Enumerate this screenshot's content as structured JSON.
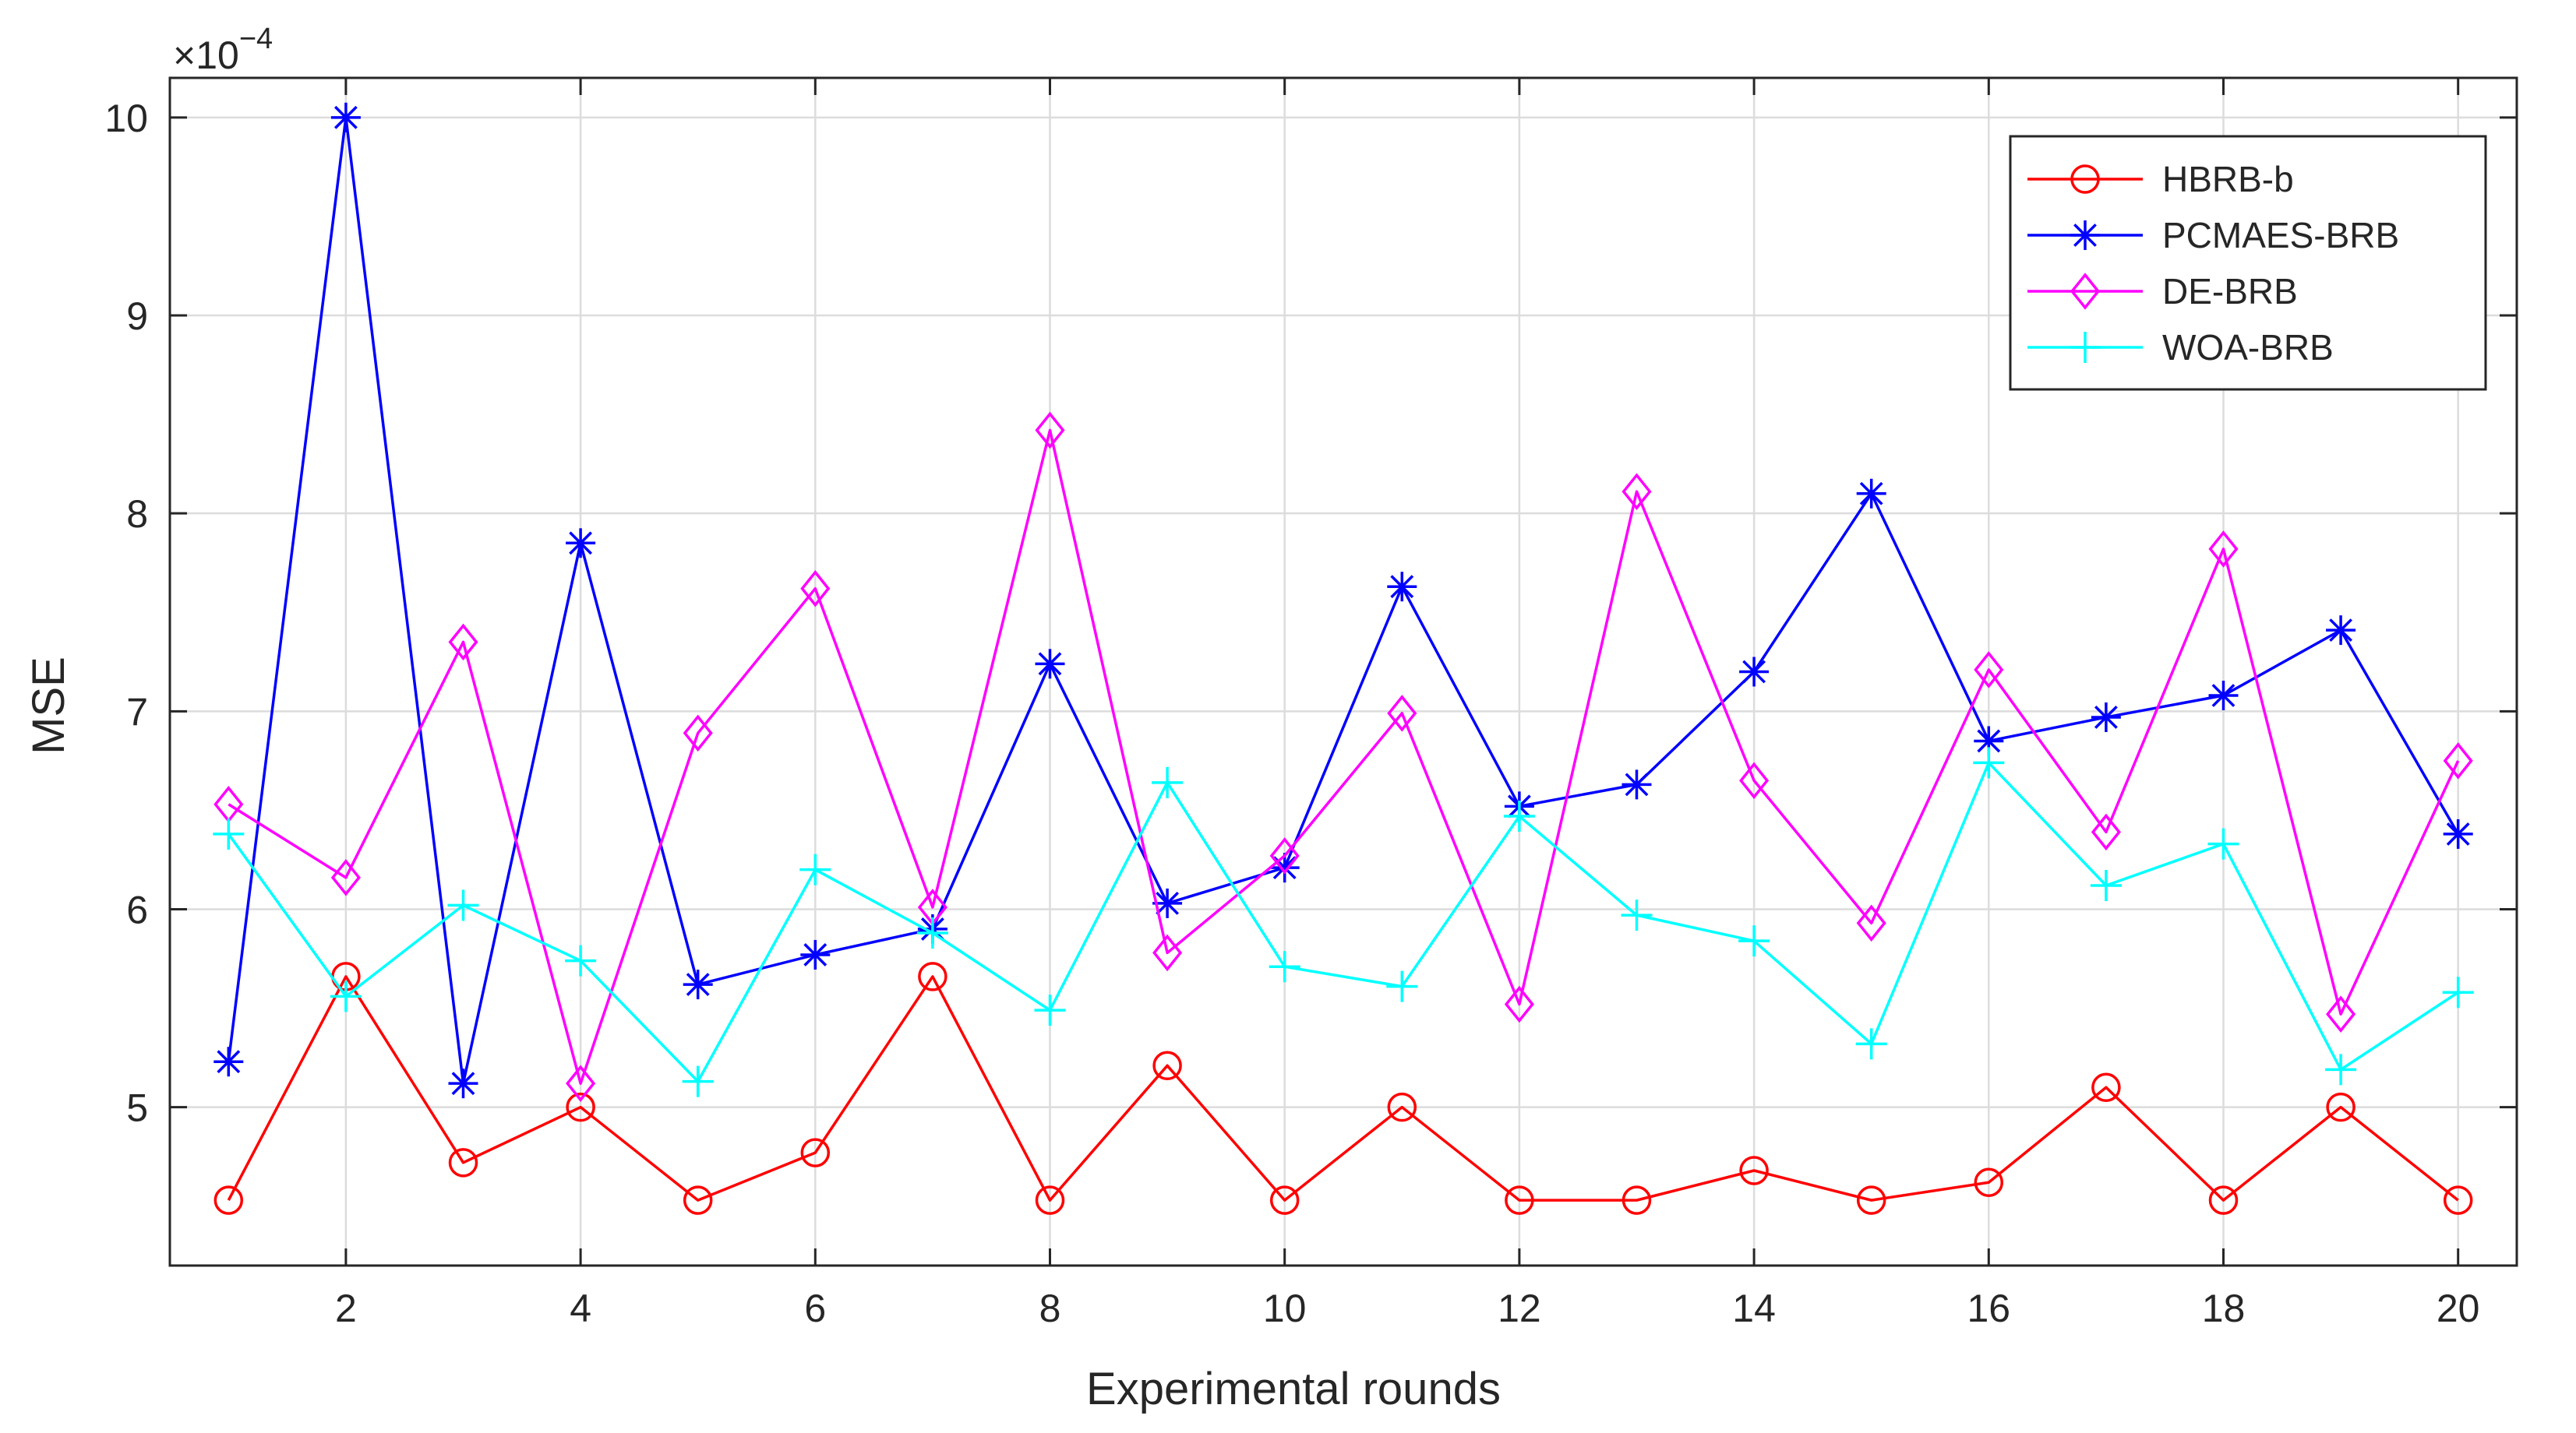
{
  "chart_data": {
    "type": "line",
    "title": "",
    "xlabel": "Experimental rounds",
    "ylabel": "MSE",
    "y_exponent_label": "×10",
    "y_exponent_power": "−4",
    "xlim": [
      0.5,
      20.5
    ],
    "ylim": [
      4.2,
      10.2
    ],
    "x_ticks": [
      2,
      4,
      6,
      8,
      10,
      12,
      14,
      16,
      18,
      20
    ],
    "y_ticks": [
      5,
      6,
      7,
      8,
      9,
      10
    ],
    "x_tick_labels": [
      "2",
      "4",
      "6",
      "8",
      "10",
      "12",
      "14",
      "16",
      "18",
      "20"
    ],
    "y_tick_labels": [
      "5",
      "6",
      "7",
      "8",
      "9",
      "10"
    ],
    "grid": true,
    "legend_position": "top-right",
    "x": [
      1,
      2,
      3,
      4,
      5,
      6,
      7,
      8,
      9,
      10,
      11,
      12,
      13,
      14,
      15,
      16,
      17,
      18,
      19,
      20
    ],
    "series": [
      {
        "name": "HBRB-b",
        "color": "#ff0000",
        "marker": "circle",
        "values": [
          4.53,
          5.66,
          4.72,
          5.0,
          4.53,
          4.77,
          5.66,
          4.53,
          5.21,
          4.53,
          5.0,
          4.53,
          4.53,
          4.68,
          4.53,
          4.62,
          5.1,
          4.53,
          5.0,
          4.53
        ]
      },
      {
        "name": "PCMAES-BRB",
        "color": "#0000ff",
        "marker": "asterisk",
        "values": [
          5.23,
          10.0,
          5.12,
          7.85,
          5.62,
          5.77,
          5.9,
          7.24,
          6.03,
          6.21,
          7.63,
          6.52,
          6.63,
          7.2,
          8.1,
          6.85,
          6.97,
          7.08,
          7.41,
          6.38
        ]
      },
      {
        "name": "DE-BRB",
        "color": "#ff00ff",
        "marker": "diamond",
        "values": [
          6.53,
          6.16,
          7.35,
          5.12,
          6.89,
          7.62,
          6.01,
          8.42,
          5.78,
          6.27,
          6.99,
          5.52,
          8.11,
          6.65,
          5.93,
          7.21,
          6.39,
          7.82,
          5.47,
          6.75
        ]
      },
      {
        "name": "WOA-BRB",
        "color": "#00ffff",
        "marker": "plus",
        "values": [
          6.38,
          5.56,
          6.02,
          5.74,
          5.13,
          6.2,
          5.88,
          5.49,
          6.64,
          5.71,
          5.61,
          6.47,
          5.97,
          5.84,
          5.32,
          6.74,
          6.12,
          6.33,
          5.19,
          5.58
        ]
      }
    ]
  }
}
